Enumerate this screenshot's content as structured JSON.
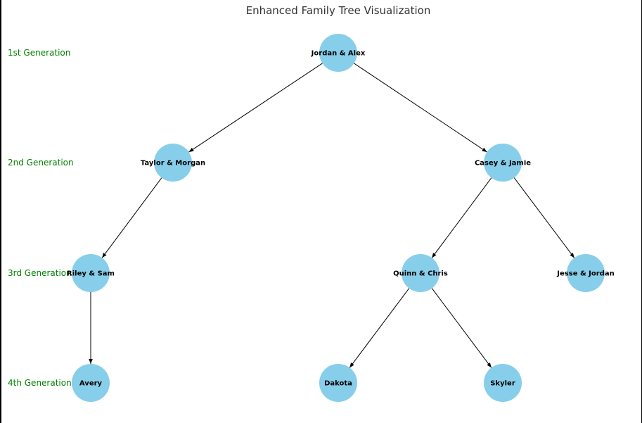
{
  "title": "Enhanced Family Tree Visualization",
  "colors": {
    "node_fill": "#87ceeb",
    "generation_label": "#008000",
    "edge": "#000000"
  },
  "generations": [
    {
      "label": "1st Generation"
    },
    {
      "label": "2nd Generation"
    },
    {
      "label": "3rd Generation"
    },
    {
      "label": "4th Generation"
    }
  ],
  "nodes": [
    {
      "id": "jordan-alex",
      "label": "Jordan & Alex",
      "generation": 1
    },
    {
      "id": "taylor-morgan",
      "label": "Taylor & Morgan",
      "generation": 2
    },
    {
      "id": "casey-jamie",
      "label": "Casey & Jamie",
      "generation": 2
    },
    {
      "id": "riley-sam",
      "label": "Riley & Sam",
      "generation": 3
    },
    {
      "id": "quinn-chris",
      "label": "Quinn & Chris",
      "generation": 3
    },
    {
      "id": "jesse-jordan",
      "label": "Jesse & Jordan",
      "generation": 3
    },
    {
      "id": "avery",
      "label": "Avery",
      "generation": 4
    },
    {
      "id": "dakota",
      "label": "Dakota",
      "generation": 4
    },
    {
      "id": "skyler",
      "label": "Skyler",
      "generation": 4
    }
  ],
  "edges": [
    {
      "from": "jordan-alex",
      "to": "taylor-morgan"
    },
    {
      "from": "jordan-alex",
      "to": "casey-jamie"
    },
    {
      "from": "taylor-morgan",
      "to": "riley-sam"
    },
    {
      "from": "casey-jamie",
      "to": "quinn-chris"
    },
    {
      "from": "casey-jamie",
      "to": "jesse-jordan"
    },
    {
      "from": "riley-sam",
      "to": "avery"
    },
    {
      "from": "quinn-chris",
      "to": "dakota"
    },
    {
      "from": "quinn-chris",
      "to": "skyler"
    }
  ]
}
